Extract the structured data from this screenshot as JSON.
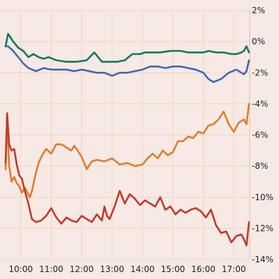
{
  "chart_data": {
    "type": "line",
    "title": "",
    "xlabel": "",
    "ylabel": "",
    "x_ticks": [
      "10:00",
      "11:00",
      "12:00",
      "13:00",
      "14:00",
      "15:00",
      "16:00",
      "17:00"
    ],
    "x_range": [
      "09:30",
      "17:30"
    ],
    "y_ticks": [
      "2%",
      "0%",
      "-2%",
      "-4%",
      "-6%",
      "-8%",
      "-10%",
      "-12%",
      "-14%"
    ],
    "ylim": [
      -14,
      2
    ],
    "grid": true,
    "y_axis_position": "right",
    "series": [
      {
        "color": "#137565",
        "x": [
          "09:30",
          "09:35",
          "09:45",
          "09:55",
          "10:05",
          "10:15",
          "10:25",
          "10:35",
          "10:45",
          "10:55",
          "11:10",
          "11:30",
          "11:50",
          "12:10",
          "12:25",
          "12:40",
          "12:55",
          "13:10",
          "13:25",
          "13:40",
          "13:55",
          "14:05",
          "14:15",
          "14:35",
          "14:55",
          "15:05",
          "15:15",
          "15:30",
          "15:45",
          "16:00",
          "16:10",
          "16:25",
          "16:40",
          "16:55",
          "17:05",
          "17:15",
          "17:20",
          "17:25",
          "17:30"
        ],
        "values": [
          -0.3,
          0.5,
          0.0,
          -0.4,
          -0.6,
          -1.0,
          -0.8,
          -1.0,
          -1.1,
          -1.0,
          -1.2,
          -1.3,
          -1.3,
          -1.2,
          -0.7,
          -1.3,
          -1.3,
          -1.3,
          -1.2,
          -0.8,
          -0.8,
          -0.7,
          -0.7,
          -0.7,
          -0.6,
          -0.6,
          -0.6,
          -0.7,
          -0.7,
          -0.7,
          -0.6,
          -0.7,
          -0.7,
          -0.8,
          -0.8,
          -0.7,
          -0.6,
          -0.3,
          -0.7
        ]
      },
      {
        "color": "#3f66b8",
        "x": [
          "09:30",
          "09:35",
          "09:45",
          "09:55",
          "10:05",
          "10:15",
          "10:30",
          "10:45",
          "11:00",
          "11:15",
          "11:30",
          "11:45",
          "12:00",
          "12:15",
          "12:30",
          "12:45",
          "13:00",
          "13:15",
          "13:30",
          "13:45",
          "14:00",
          "14:15",
          "14:30",
          "14:45",
          "15:00",
          "15:15",
          "15:30",
          "15:45",
          "16:00",
          "16:10",
          "16:20",
          "16:35",
          "16:50",
          "17:05",
          "17:15",
          "17:20",
          "17:25",
          "17:30"
        ],
        "values": [
          -0.3,
          -0.3,
          -0.6,
          -1.0,
          -1.4,
          -1.7,
          -1.9,
          -1.7,
          -1.8,
          -1.8,
          -1.8,
          -1.9,
          -1.8,
          -1.9,
          -2.0,
          -2.0,
          -2.2,
          -2.0,
          -2.0,
          -1.9,
          -1.8,
          -1.6,
          -1.6,
          -1.7,
          -1.6,
          -1.6,
          -1.7,
          -1.8,
          -2.0,
          -2.4,
          -2.6,
          -2.4,
          -2.0,
          -1.8,
          -2.0,
          -2.1,
          -1.9,
          -1.2
        ]
      },
      {
        "color": "#e07c2c",
        "x": [
          "09:30",
          "09:33",
          "09:37",
          "09:42",
          "09:47",
          "09:52",
          "09:57",
          "10:02",
          "10:08",
          "10:13",
          "10:18",
          "10:22",
          "10:26",
          "10:30",
          "10:35",
          "10:42",
          "10:50",
          "11:00",
          "11:10",
          "11:20",
          "11:30",
          "11:40",
          "11:45",
          "11:50",
          "12:00",
          "12:10",
          "12:20",
          "12:30",
          "12:45",
          "13:00",
          "13:15",
          "13:30",
          "13:45",
          "14:00",
          "14:10",
          "14:20",
          "14:30",
          "14:40",
          "14:50",
          "15:00",
          "15:10",
          "15:20",
          "15:30",
          "15:40",
          "15:50",
          "16:00",
          "16:10",
          "16:20",
          "16:30",
          "16:40",
          "16:50",
          "17:00",
          "17:10",
          "17:20",
          "17:25",
          "17:30"
        ],
        "values": [
          -8.2,
          -4.8,
          -8.0,
          -9.0,
          -8.7,
          -9.1,
          -9.3,
          -9.7,
          -9.4,
          -9.7,
          -10.0,
          -9.6,
          -9.0,
          -8.4,
          -7.8,
          -7.3,
          -6.9,
          -7.2,
          -6.6,
          -6.6,
          -6.8,
          -7.0,
          -6.7,
          -6.9,
          -7.4,
          -8.2,
          -7.7,
          -7.6,
          -7.7,
          -7.5,
          -7.9,
          -7.8,
          -8.0,
          -7.9,
          -7.5,
          -7.2,
          -7.5,
          -7.0,
          -7.3,
          -7.1,
          -6.4,
          -6.4,
          -6.1,
          -6.2,
          -5.8,
          -5.9,
          -5.4,
          -5.3,
          -5.0,
          -4.5,
          -5.3,
          -5.8,
          -5.2,
          -5.0,
          -5.3,
          -4.0
        ]
      },
      {
        "color": "#c0392b",
        "x": [
          "09:30",
          "09:33",
          "09:37",
          "09:42",
          "09:47",
          "09:52",
          "09:57",
          "10:02",
          "10:08",
          "10:15",
          "10:22",
          "10:30",
          "10:40",
          "10:50",
          "11:00",
          "11:10",
          "11:20",
          "11:30",
          "11:40",
          "11:50",
          "12:00",
          "12:10",
          "12:20",
          "12:30",
          "12:40",
          "12:45",
          "12:50",
          "12:55",
          "13:05",
          "13:15",
          "13:25",
          "13:35",
          "13:45",
          "13:55",
          "14:05",
          "14:15",
          "14:25",
          "14:35",
          "14:45",
          "14:55",
          "15:05",
          "15:15",
          "15:25",
          "15:35",
          "15:45",
          "15:55",
          "16:05",
          "16:15",
          "16:25",
          "16:35",
          "16:45",
          "16:55",
          "17:05",
          "17:15",
          "17:20",
          "17:25",
          "17:30"
        ],
        "values": [
          -7.8,
          -4.6,
          -6.6,
          -7.0,
          -6.9,
          -7.9,
          -8.6,
          -8.8,
          -9.6,
          -10.4,
          -11.4,
          -11.6,
          -11.5,
          -11.2,
          -10.7,
          -11.3,
          -11.7,
          -11.3,
          -11.5,
          -11.6,
          -11.2,
          -11.4,
          -11.6,
          -11.1,
          -11.5,
          -10.6,
          -11.2,
          -11.4,
          -10.6,
          -9.6,
          -10.4,
          -9.8,
          -10.1,
          -10.5,
          -10.2,
          -10.4,
          -10.6,
          -10.0,
          -10.8,
          -10.6,
          -11.1,
          -10.8,
          -11.0,
          -10.8,
          -10.7,
          -10.9,
          -11.3,
          -10.8,
          -11.8,
          -12.3,
          -12.2,
          -12.9,
          -12.5,
          -12.4,
          -12.7,
          -13.1,
          -11.6
        ]
      }
    ]
  }
}
